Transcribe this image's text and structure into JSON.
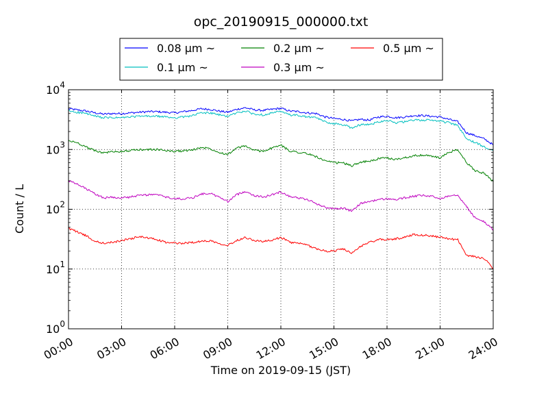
{
  "chart_data": {
    "type": "line",
    "title": "opc_20190915_000000.txt",
    "xlabel": "Time on 2019-09-15 (JST)",
    "ylabel": "Count / L",
    "yscale": "log",
    "ylim": [
      1,
      10000
    ],
    "xlim_hours": [
      0,
      24
    ],
    "grid": true,
    "legend_location": "top-center",
    "x_tick_labels": [
      "00:00",
      "03:00",
      "06:00",
      "09:00",
      "12:00",
      "15:00",
      "18:00",
      "21:00",
      "24:00"
    ],
    "y_ticks": [
      {
        "base": "10",
        "exp": "0"
      },
      {
        "base": "10",
        "exp": "1"
      },
      {
        "base": "10",
        "exp": "2"
      },
      {
        "base": "10",
        "exp": "3"
      },
      {
        "base": "10",
        "exp": "4"
      }
    ],
    "x_hours": [
      0,
      0.5,
      1,
      1.5,
      2,
      2.5,
      3,
      3.5,
      4,
      4.5,
      5,
      5.5,
      6,
      6.5,
      7,
      7.5,
      8,
      8.5,
      9,
      9.5,
      10,
      10.5,
      11,
      11.5,
      12,
      12.5,
      13,
      13.5,
      14,
      14.5,
      15,
      15.5,
      16,
      16.5,
      17,
      17.5,
      18,
      18.5,
      19,
      19.5,
      20,
      20.5,
      21,
      21.5,
      22,
      22.5,
      23,
      23.5,
      24
    ],
    "series": [
      {
        "name": "0.08 μm ~",
        "color": "#0000ff",
        "values": [
          4800,
          4600,
          4400,
          4100,
          3900,
          4000,
          4000,
          4100,
          4200,
          4300,
          4300,
          4200,
          4100,
          4300,
          4500,
          4800,
          4700,
          4400,
          4200,
          4700,
          5000,
          4600,
          4500,
          4700,
          4900,
          4400,
          4300,
          4100,
          4000,
          3500,
          3300,
          3200,
          3000,
          3200,
          3100,
          3500,
          3600,
          3400,
          3500,
          3700,
          3700,
          3600,
          3500,
          3200,
          2900,
          1900,
          1700,
          1500,
          1200
        ]
      },
      {
        "name": "0.1 μm ~",
        "color": "#00bfbf",
        "values": [
          4400,
          4200,
          4000,
          3600,
          3400,
          3400,
          3400,
          3500,
          3600,
          3600,
          3600,
          3500,
          3400,
          3500,
          3700,
          4100,
          4100,
          3800,
          3600,
          4100,
          4400,
          3900,
          3800,
          4100,
          4300,
          3800,
          3700,
          3500,
          3400,
          2900,
          2700,
          2600,
          2300,
          2600,
          2600,
          2900,
          3100,
          2800,
          2900,
          3100,
          3100,
          3100,
          3000,
          2800,
          2500,
          1500,
          1300,
          1100,
          1000
        ]
      },
      {
        "name": "0.2 μm ~",
        "color": "#008000",
        "values": [
          1400,
          1300,
          1100,
          950,
          880,
          920,
          930,
          960,
          990,
          1000,
          1000,
          960,
          930,
          950,
          980,
          1080,
          1040,
          900,
          830,
          1050,
          1150,
          960,
          940,
          1060,
          1180,
          950,
          900,
          850,
          760,
          640,
          600,
          600,
          530,
          620,
          630,
          700,
          720,
          680,
          730,
          790,
          800,
          780,
          720,
          900,
          980,
          600,
          440,
          400,
          290
        ]
      },
      {
        "name": "0.3 μm ~",
        "color": "#bf00bf",
        "values": [
          300,
          260,
          220,
          180,
          155,
          160,
          155,
          160,
          170,
          175,
          175,
          160,
          150,
          150,
          155,
          180,
          185,
          160,
          135,
          175,
          200,
          170,
          160,
          175,
          195,
          165,
          155,
          145,
          125,
          108,
          102,
          105,
          93,
          125,
          135,
          145,
          150,
          145,
          155,
          165,
          170,
          165,
          150,
          170,
          175,
          110,
          70,
          62,
          45
        ]
      },
      {
        "name": "0.5 μm ~",
        "color": "#ff0000",
        "values": [
          48,
          42,
          36,
          29,
          27,
          28,
          30,
          32,
          35,
          33,
          31,
          28,
          27,
          27,
          28,
          29,
          30,
          27,
          25,
          30,
          34,
          30,
          29,
          30,
          34,
          28,
          27,
          25,
          22,
          20,
          20,
          22,
          18,
          24,
          28,
          31,
          31,
          32,
          34,
          38,
          37,
          36,
          34,
          32,
          31,
          17,
          16,
          15,
          10
        ]
      }
    ]
  }
}
